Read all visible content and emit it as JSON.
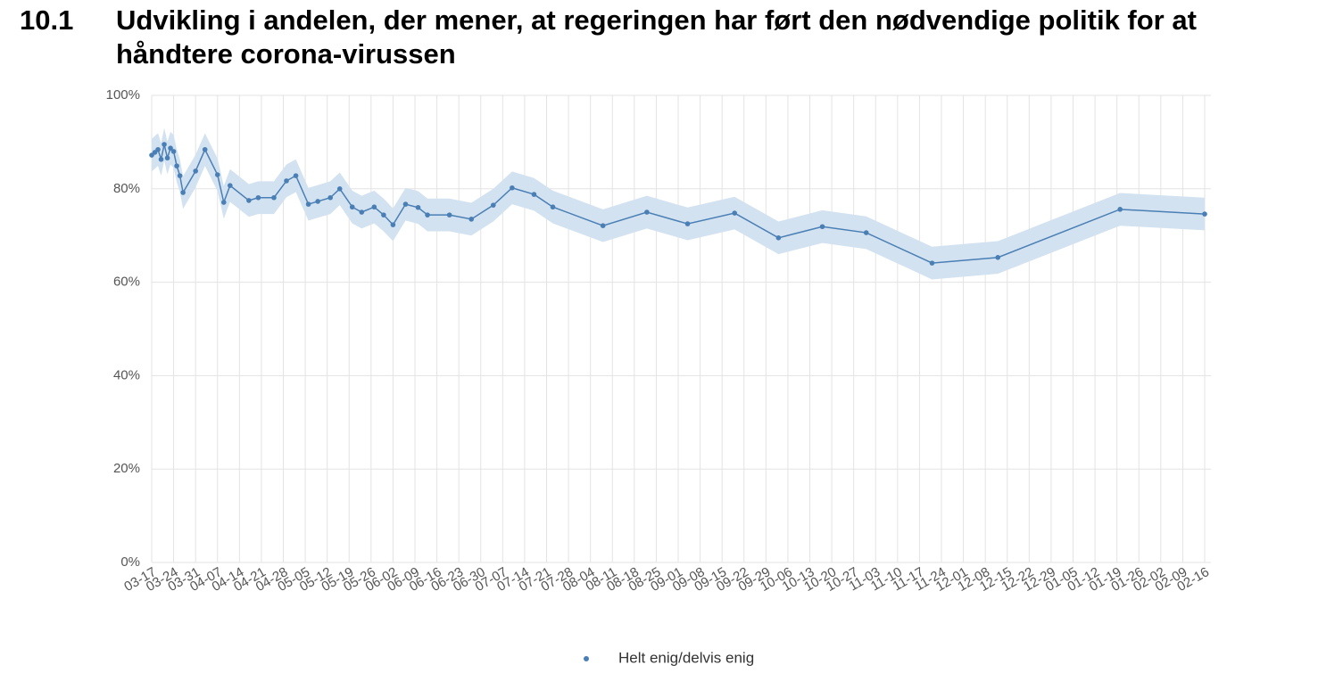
{
  "chart_data": {
    "type": "line",
    "number": "10.1",
    "title": "Udvikling i andelen, der mener, at regeringen har ført den nødvendige politik for at håndtere corona-virussen",
    "x": [
      "03-17",
      "03-18",
      "03-19",
      "03-20",
      "03-21",
      "03-22",
      "03-23",
      "03-24",
      "03-25",
      "03-26",
      "03-27",
      "03-31",
      "04-03",
      "04-07",
      "04-09",
      "04-11",
      "04-17",
      "04-20",
      "04-25",
      "04-29",
      "05-02",
      "05-06",
      "05-09",
      "05-13",
      "05-16",
      "05-20",
      "05-23",
      "05-27",
      "05-30",
      "06-02",
      "06-06",
      "06-10",
      "06-13",
      "06-20",
      "06-27",
      "07-04",
      "07-10",
      "07-17",
      "07-23",
      "08-08",
      "08-22",
      "09-04",
      "09-19",
      "10-03",
      "10-17",
      "10-31",
      "11-21",
      "12-12",
      "01-20",
      "02-16"
    ],
    "series": [
      {
        "name": "Helt enig/delvis enig",
        "color": "#4a7fb5",
        "band_color": "#d3e2f0",
        "values": [
          87.2,
          87.8,
          88.4,
          86.3,
          89.5,
          86.6,
          88.7,
          88,
          84.9,
          82.8,
          79.2,
          83.8,
          88.4,
          83,
          77.1,
          80.7,
          77.5,
          78.1,
          78.1,
          81.7,
          82.8,
          76.7,
          77.3,
          78.1,
          80,
          76.1,
          75,
          76.1,
          74.4,
          72.3,
          76.7,
          76,
          74.4,
          74.4,
          73.5,
          76.5,
          80.2,
          78.8,
          76.1,
          72.1,
          75,
          72.5,
          74.8,
          69.5,
          71.9,
          70.6,
          64.1,
          65.3,
          75.6,
          74.6
        ],
        "lower": [
          83.7,
          84.3,
          84.9,
          82.8,
          86,
          83.1,
          85.2,
          84.5,
          81.4,
          79.3,
          75.7,
          80.3,
          84.9,
          79.5,
          73.6,
          77.2,
          74,
          74.6,
          74.6,
          78.2,
          79.3,
          73.2,
          73.8,
          74.6,
          76.5,
          72.6,
          71.5,
          72.6,
          70.9,
          68.8,
          73.2,
          72.5,
          70.9,
          70.9,
          70,
          73,
          76.7,
          75.3,
          72.6,
          68.6,
          71.5,
          69,
          71.3,
          66,
          68.4,
          67.1,
          60.6,
          61.8,
          72.1,
          71.1
        ],
        "upper": [
          90.7,
          91.3,
          91.9,
          89.8,
          93,
          90.1,
          92.2,
          91.5,
          88.4,
          86.3,
          82.7,
          87.3,
          91.9,
          86.5,
          80.6,
          84.2,
          81,
          81.6,
          81.6,
          85.2,
          86.3,
          80.2,
          80.8,
          81.6,
          83.5,
          79.6,
          78.5,
          79.6,
          77.9,
          75.8,
          80.2,
          79.5,
          77.9,
          77.9,
          77,
          80,
          83.7,
          82.3,
          79.6,
          75.6,
          78.5,
          76,
          78.3,
          73,
          75.4,
          74.1,
          67.6,
          68.8,
          79.1,
          78.1
        ]
      }
    ],
    "xlim": [
      "03-17",
      "02-16"
    ],
    "xticks": [
      "03-17",
      "03-24",
      "03-31",
      "04-07",
      "04-14",
      "04-21",
      "04-28",
      "05-05",
      "05-12",
      "05-19",
      "05-26",
      "06-02",
      "06-09",
      "06-16",
      "06-23",
      "06-30",
      "07-07",
      "07-14",
      "07-21",
      "07-28",
      "08-04",
      "08-11",
      "08-18",
      "08-25",
      "09-01",
      "09-08",
      "09-15",
      "09-22",
      "09-29",
      "10-06",
      "10-13",
      "10-20",
      "10-27",
      "11-03",
      "11-10",
      "11-17",
      "11-24",
      "12-01",
      "12-08",
      "12-15",
      "12-22",
      "12-29",
      "01-05",
      "01-12",
      "01-19",
      "01-26",
      "02-02",
      "02-09",
      "02-16"
    ],
    "ylim": [
      0,
      100
    ],
    "yticks": [
      {
        "value": 0,
        "label": "0%"
      },
      {
        "value": 20,
        "label": "20%"
      },
      {
        "value": 40,
        "label": "40%"
      },
      {
        "value": 60,
        "label": "60%"
      },
      {
        "value": 80,
        "label": "80%"
      },
      {
        "value": 100,
        "label": "100%"
      }
    ],
    "grid": true,
    "legend": "bottom"
  }
}
